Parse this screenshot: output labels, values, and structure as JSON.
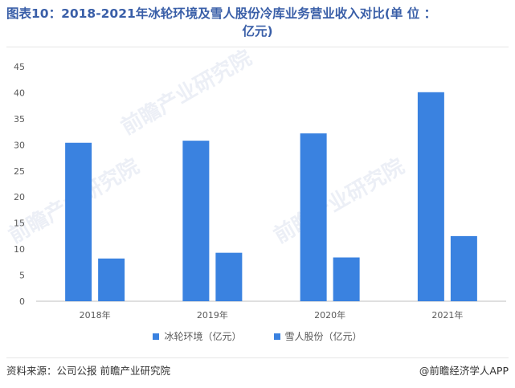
{
  "header": {
    "title_line1": "图表10：2018-2021年冰轮环境及雪人股份冷库业务营业收入对比(单 位 ：",
    "title_line2": "亿元)"
  },
  "chart_data": {
    "type": "bar",
    "categories": [
      "2018年",
      "2019年",
      "2020年",
      "2021年"
    ],
    "series": [
      {
        "name": "冰轮环境（亿元）",
        "values": [
          30.4,
          30.8,
          32.2,
          40.1
        ],
        "color": "#3a82e0"
      },
      {
        "name": "雪人股份（亿元）",
        "values": [
          8.2,
          9.3,
          8.4,
          12.5
        ],
        "color": "#3a82e0"
      }
    ],
    "yticks": [
      "0",
      "5",
      "10",
      "15",
      "20",
      "25",
      "30",
      "35",
      "40",
      "45"
    ],
    "ylim": [
      0,
      45
    ],
    "legend_position": "bottom",
    "grid": false
  },
  "footer": {
    "source": "资料来源：公司公报 前瞻产业研究院",
    "brand": "@前瞻经济学人APP"
  },
  "watermark": {
    "text": "前瞻产业研究院"
  }
}
